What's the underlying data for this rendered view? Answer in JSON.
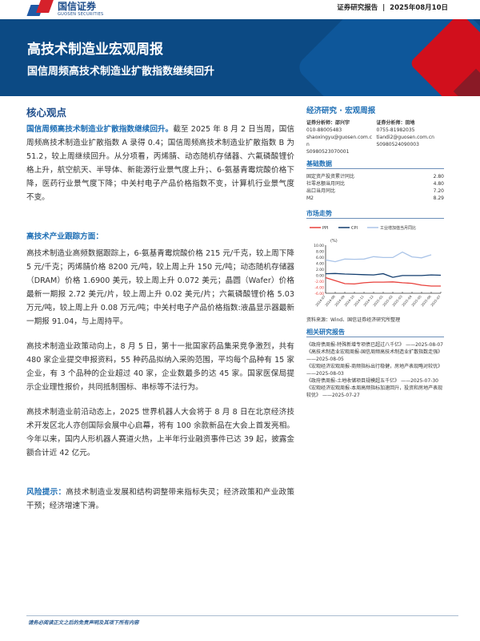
{
  "header": {
    "logo_cn": "国信证券",
    "logo_en": "GUOSEN SECURITIES",
    "report_type": "证券研究报告",
    "date": "2025年08月10日"
  },
  "banner": {
    "title": "高技术制造业宏观周报",
    "subtitle": "国信周频高技术制造业扩散指数继续回升"
  },
  "core": {
    "heading": "核心观点",
    "lead": "国信周频高技术制造业扩散指数继续回升。",
    "body": "截至 2025 年 8 月 2 日当周，国信周频高技术制造业扩散指数 A 录得 0.4；国信周频高技术制造业扩散指数 B 为 51.2，较上周继续回升。从分项看，丙烯腈、动态随机存储器、六氟磷酸锂价格上升，航空航天、半导体、新能源行业景气度上升；、6-氨基青霉烷酸价格下降，医药行业景气度下降；中关村电子产品价格指数不变，计算机行业景气度不变。"
  },
  "tracking": {
    "heading": "高技术产业跟踪方面：",
    "p1": "高技术制造业高频数据跟踪上，6-氨基青霉烷酸价格 215 元/千克，较上周下降 5 元/千克；丙烯腈价格 8200 元/吨，较上周上升 150 元/吨；动态随机存储器（DRAM）价格 1.6900 美元，较上周上升 0.072 美元；晶圆（Wafer）价格最新一期报 2.72 美元/片，较上周上升 0.02 美元/片；六氟磷酸锂价格 5.03 万元/吨，较上周上升 0.08 万元/吨；中关村电子产品价格指数:液晶显示器最新一期报 91.04，与上周持平。",
    "p2": "高技术制造业政策动向上，8 月 5 日，第十一批国家药品集采竞争激烈，共有 480 家企业提交申报资料，55 种药品拟纳入采购范围，平均每个品种有 15 家企业，有 3 个品种的企业超过 40 家，企业数最多的达 45 家。国家医保局提示企业理性报价，共同抵制围标、串标等不法行为。",
    "p3": "高技术制造业前沿动态上，2025 世界机器人大会将于 8 月 8 日在北京经济技术开发区北人亦创国际会展中心启幕，将有 100 余款新品在大会上首发亮相。今年以来，国内人形机器人赛道火热，上半年行业融资事件已达 39 起，披露金额合计近 42 亿元。"
  },
  "risk": {
    "label": "风险提示：",
    "text": "高技术制造业发展和结构调整带来指标失灵；经济政策和产业政策干预；经济增速下滑。"
  },
  "sidebar": {
    "heading": "经济研究 · 宏观周报",
    "analysts": [
      {
        "title": "证券分析师：邵兴宇",
        "phone": "010-88005483",
        "email": "shaoxingyu@guosen.com.cn",
        "cert": "S0980523070001"
      },
      {
        "title": "证券分析师：田地",
        "phone": "0755-81982035",
        "email": "tiandi2@guosen.com.cn",
        "cert": "S0980524090003"
      }
    ],
    "basic_heading": "基础数据",
    "basic": [
      {
        "k": "固定资产投资累计同比",
        "v": "2.80"
      },
      {
        "k": "社零总额当月同比",
        "v": "4.80"
      },
      {
        "k": "出口当月同比",
        "v": "7.20"
      },
      {
        "k": "M2",
        "v": "8.29"
      }
    ],
    "market_heading": "市场走势",
    "source": "资料来源：Wind、国信证券经济研究所整理",
    "related_heading": "相关研究报告",
    "related": [
      {
        "t": "《政府债周报-特殊新增专项债已超过八千亿》",
        "d": "——2025-08-07"
      },
      {
        "t": "《高技术制造业宏观周报-国信周频高技术制造业扩散指数走强》",
        "d": "——2025-08-05"
      },
      {
        "t": "《宏观经济宏观周报-商频指标出行稳健，房地产表现略对较优》",
        "d": "——2025-08-03"
      },
      {
        "t": "《政府债周报-土地收储项目规模超五千亿》",
        "d": "——2025-07-30"
      },
      {
        "t": "《宏观经济宏观周报-本周高频指标加速回升，投资和房地产表现较优》",
        "d": "——2025-07-27"
      }
    ]
  },
  "chart_data": {
    "type": "line",
    "x": [
      "2024-07",
      "2024-08",
      "2024-09",
      "2024-10",
      "2024-11",
      "2024-12",
      "2025-01",
      "2025-02",
      "2025-03",
      "2025-04",
      "2025-05",
      "2025-06",
      "2025-07"
    ],
    "series": [
      {
        "name": "PPI",
        "color": "#e8413c",
        "values": [
          -0.8,
          -1.8,
          -2.8,
          -2.9,
          -2.5,
          -2.3,
          -2.3,
          -2.2,
          -2.5,
          -2.7,
          -3.3,
          -3.6,
          -3.6
        ]
      },
      {
        "name": "CPI",
        "color": "#123d6e",
        "values": [
          0.5,
          0.6,
          0.4,
          0.3,
          0.2,
          0.1,
          0.5,
          -0.7,
          -0.1,
          -0.1,
          -0.1,
          0.1,
          0.0
        ]
      },
      {
        "name": "工业增加值当月同比",
        "color": "#aac4e8",
        "values": [
          5.1,
          4.5,
          5.4,
          5.3,
          5.4,
          6.2,
          5.9,
          5.9,
          7.7,
          6.1,
          5.8,
          6.8,
          null
        ]
      }
    ],
    "ylabel": "(%)",
    "ylim": [
      -6,
      10
    ],
    "yticks": [
      "10.00",
      "8.00",
      "6.00",
      "4.00",
      "2.00",
      "0.00",
      "-2.00",
      "-4.00",
      "-6.00"
    ],
    "grid": false,
    "legend": "top"
  },
  "footer": {
    "disclaimer": "请务必阅读正文之后的免责声明及其项下所有内容"
  }
}
